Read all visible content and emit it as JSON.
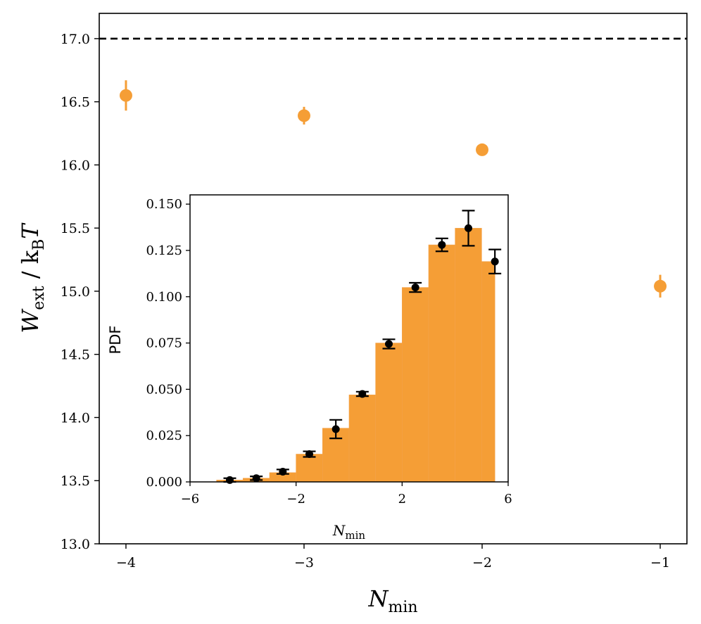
{
  "chart_data": [
    {
      "type": "scatter",
      "title": "",
      "xlabel": "N",
      "xlabel_sub": "min",
      "ylabel": "W",
      "ylabel_sub": "ext",
      "ylabel_rest": " / k",
      "ylabel_rest_sub": "B",
      "ylabel_tail": "T",
      "xlim": [
        -4.15,
        -0.85
      ],
      "ylim": [
        13.0,
        17.2
      ],
      "xticks": [
        -4,
        -3,
        -2,
        -1
      ],
      "xtick_labels": [
        "−4",
        "−3",
        "−2",
        "−1"
      ],
      "yticks": [
        13.0,
        13.5,
        14.0,
        14.5,
        15.0,
        15.5,
        16.0,
        16.5,
        17.0
      ],
      "ytick_labels": [
        "13.0",
        "13.5",
        "14.0",
        "14.5",
        "15.0",
        "15.5",
        "16.0",
        "16.5",
        "17.0"
      ],
      "reference_line": {
        "y": 17.0,
        "style": "dashed",
        "color": "#000000"
      },
      "series": [
        {
          "color": "#f59e36",
          "points": [
            {
              "x": -4.0,
              "y": 16.55,
              "yerr": 0.12
            },
            {
              "x": -3.0,
              "y": 16.39,
              "yerr": 0.07
            },
            {
              "x": -2.0,
              "y": 16.12,
              "yerr": 0.02
            },
            {
              "x": -1.0,
              "y": 15.04,
              "yerr": 0.09
            }
          ]
        }
      ],
      "grid": false
    },
    {
      "type": "bar",
      "role": "inset",
      "xlabel": "N",
      "xlabel_sub": "min",
      "ylabel": "PDF",
      "xlim": [
        -6,
        6
      ],
      "ylim": [
        0,
        0.155
      ],
      "xticks": [
        -6,
        -2,
        2,
        6
      ],
      "xtick_labels": [
        "−6",
        "−2",
        "2",
        "6"
      ],
      "yticks": [
        0.0,
        0.025,
        0.05,
        0.075,
        0.1,
        0.125,
        0.15
      ],
      "ytick_labels": [
        "0.000",
        "0.025",
        "0.050",
        "0.075",
        "0.100",
        "0.125",
        "0.150"
      ],
      "bar_color": "#f59e36",
      "bins": [
        {
          "left": -5.0,
          "right": -4.0,
          "value": 0.001
        },
        {
          "left": -4.0,
          "right": -3.0,
          "value": 0.002
        },
        {
          "left": -3.0,
          "right": -2.0,
          "value": 0.005
        },
        {
          "left": -2.0,
          "right": -1.0,
          "value": 0.015
        },
        {
          "left": -1.0,
          "right": 0.0,
          "value": 0.029
        },
        {
          "left": 0.0,
          "right": 1.0,
          "value": 0.047
        },
        {
          "left": 1.0,
          "right": 2.0,
          "value": 0.075
        },
        {
          "left": 2.0,
          "right": 3.0,
          "value": 0.105
        },
        {
          "left": 3.0,
          "right": 4.0,
          "value": 0.128
        },
        {
          "left": 4.0,
          "right": 5.0,
          "value": 0.137
        },
        {
          "left": 5.0,
          "right": 5.5,
          "value": 0.119
        }
      ],
      "points_color": "#000000",
      "points": [
        {
          "x": -4.5,
          "y": 0.001,
          "yerr": 0.001
        },
        {
          "x": -3.5,
          "y": 0.002,
          "yerr": 0.001
        },
        {
          "x": -2.5,
          "y": 0.0055,
          "yerr": 0.0012
        },
        {
          "x": -1.5,
          "y": 0.015,
          "yerr": 0.0015
        },
        {
          "x": -0.5,
          "y": 0.0285,
          "yerr": 0.005
        },
        {
          "x": 0.5,
          "y": 0.0475,
          "yerr": 0.0012
        },
        {
          "x": 1.5,
          "y": 0.0745,
          "yerr": 0.0025
        },
        {
          "x": 2.5,
          "y": 0.105,
          "yerr": 0.0025
        },
        {
          "x": 3.5,
          "y": 0.128,
          "yerr": 0.0035
        },
        {
          "x": 4.5,
          "y": 0.137,
          "yerr": 0.0095
        },
        {
          "x": 5.5,
          "y": 0.119,
          "yerr": 0.0065
        }
      ],
      "grid": false
    }
  ]
}
